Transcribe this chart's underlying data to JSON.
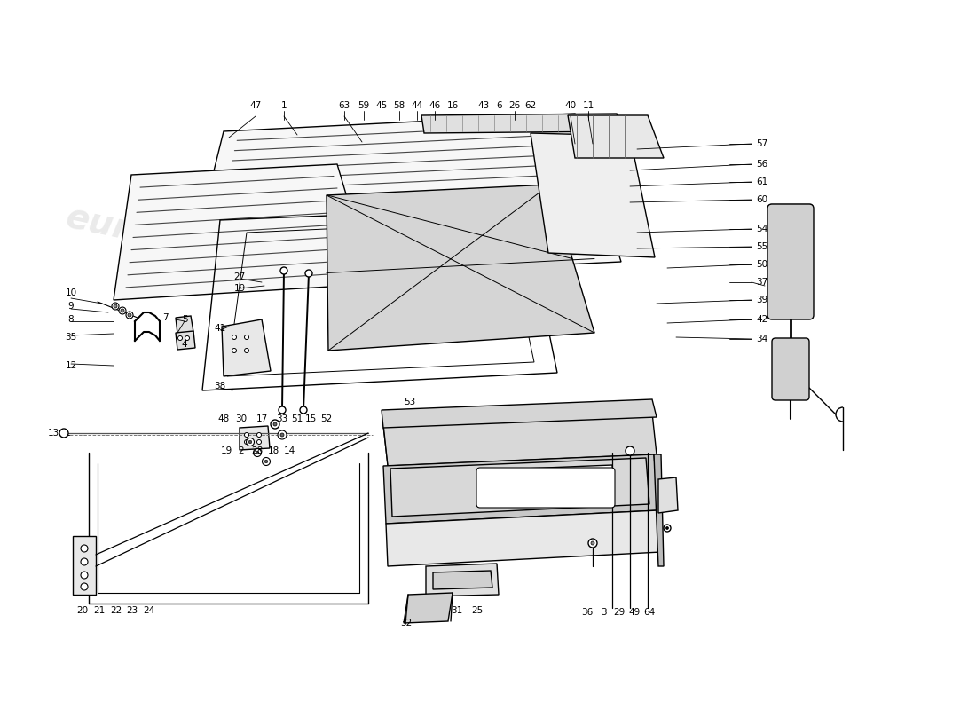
{
  "bg_color": "#ffffff",
  "lc": "#000000",
  "wm_color": "#cccccc",
  "fs": 7.5,
  "fill_hatch": "#d8d8d8",
  "fill_light": "#eeeeee",
  "fill_medium": "#cccccc"
}
